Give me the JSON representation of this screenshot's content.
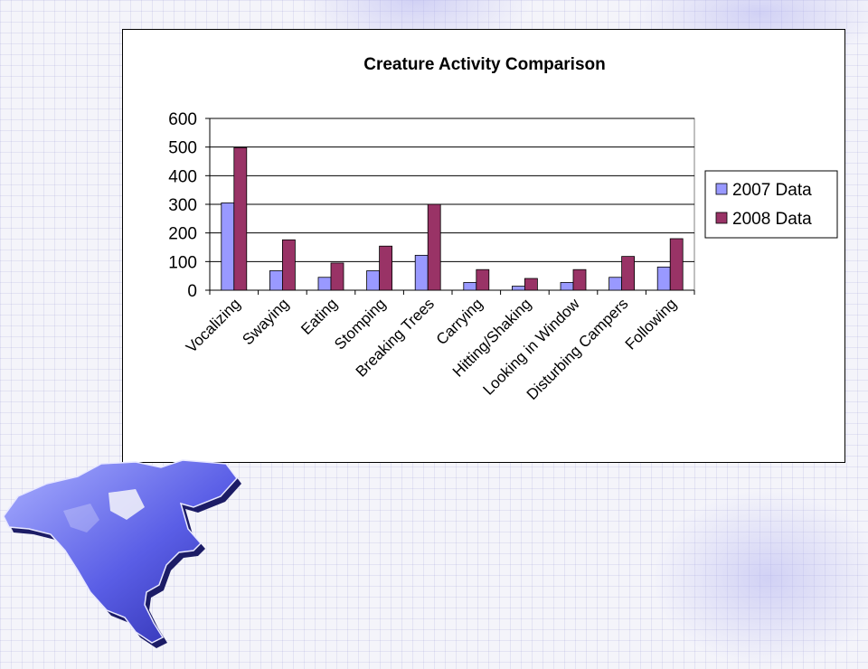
{
  "colors": {
    "series_2007": "#9999ff",
    "series_2008": "#993366",
    "background": "#f4f4fa"
  },
  "decor": {
    "icon": "north-america-map-icon"
  },
  "chart_data": {
    "type": "bar",
    "title": "Creature Activity Comparison",
    "xlabel": "",
    "ylabel": "",
    "ylim": [
      0,
      600
    ],
    "yticks": [
      0,
      100,
      200,
      300,
      400,
      500,
      600
    ],
    "grid": true,
    "legend": "right",
    "categories": [
      "Vocalizing",
      "Swaying",
      "Eating",
      "Stomping",
      "Breaking Trees",
      "Carrying",
      "Hitting/Shaking",
      "Looking in Window",
      "Disturbing Campers",
      "Following"
    ],
    "series": [
      {
        "name": "2007 Data",
        "color": "#9999ff",
        "values": [
          305,
          68,
          45,
          68,
          122,
          27,
          14,
          27,
          45,
          81
        ]
      },
      {
        "name": "2008 Data",
        "color": "#993366",
        "values": [
          498,
          176,
          95,
          154,
          300,
          72,
          41,
          72,
          118,
          180
        ]
      }
    ]
  }
}
